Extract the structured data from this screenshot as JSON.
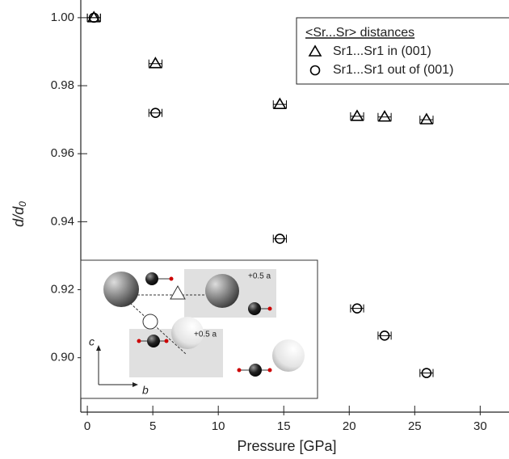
{
  "chart_data": {
    "type": "scatter",
    "xlabel": "Pressure [GPa]",
    "ylabel": "d/d",
    "ylabel_subscript": "0",
    "x": [
      0.5,
      5.2,
      14.7,
      20.6,
      22.7,
      25.9
    ],
    "xerr": [
      0.5,
      0.5,
      0.5,
      0.5,
      0.5,
      0.5
    ],
    "series": [
      {
        "name": "Sr1...Sr1 in (001)",
        "marker": "triangle",
        "color": "#000000",
        "values": [
          1.0,
          0.9865,
          0.9745,
          0.971,
          0.9708,
          0.97
        ]
      },
      {
        "name": "Sr1...Sr1 out of (001)",
        "marker": "circle",
        "color": "#000000",
        "values": [
          1.0,
          0.972,
          0.935,
          0.9145,
          0.9065,
          0.8955
        ]
      }
    ],
    "legend_title": "<Sr...Sr> distances",
    "legend": "upper right",
    "xlim": [
      -0.5,
      32.2
    ],
    "ylim": [
      0.884,
      1.0052
    ],
    "xticks": [
      0,
      5,
      10,
      15,
      20,
      25,
      30
    ],
    "yticks": [
      {
        "value": 0.9,
        "label": "0.90"
      },
      {
        "value": 0.92,
        "label": "0.92"
      },
      {
        "value": 0.94,
        "label": "0.94"
      },
      {
        "value": 0.96,
        "label": "0.96"
      },
      {
        "value": 0.98,
        "label": "0.98"
      },
      {
        "value": 1.0,
        "label": "1.00"
      }
    ],
    "annotations": [
      "+0.5 a",
      "+0.5 a",
      "c",
      "b"
    ]
  }
}
